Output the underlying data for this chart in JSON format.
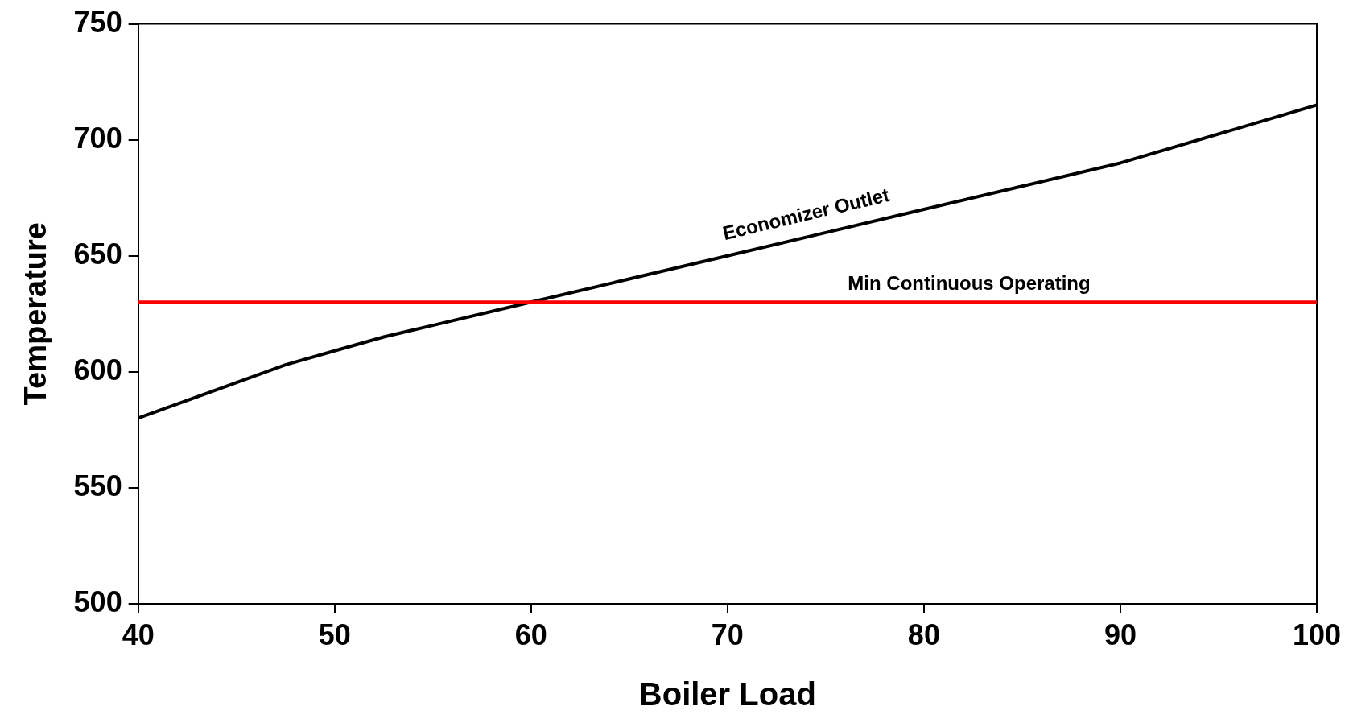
{
  "chart_data": {
    "type": "line",
    "xlabel": "Boiler Load",
    "ylabel": "Temperature",
    "xlim": [
      40,
      100
    ],
    "xticks": [
      40,
      50,
      60,
      70,
      80,
      90,
      100
    ],
    "ylim": [
      500,
      750
    ],
    "yticks": [
      500,
      550,
      600,
      650,
      700,
      750
    ],
    "grid": false,
    "marker": "none",
    "line_style": "solid",
    "series": [
      {
        "name": "Economizer Outlet",
        "color": "#000000",
        "x": [
          40,
          47.5,
          50,
          52.5,
          55,
          60,
          70,
          80,
          85,
          90,
          100
        ],
        "values": [
          580,
          603,
          609,
          615,
          620,
          630,
          650,
          670,
          680,
          690,
          715
        ]
      }
    ],
    "ref_lines": [
      {
        "axis": "y",
        "value": 630,
        "label": "Min Continuous Operating",
        "color": "#ff0000"
      }
    ]
  }
}
